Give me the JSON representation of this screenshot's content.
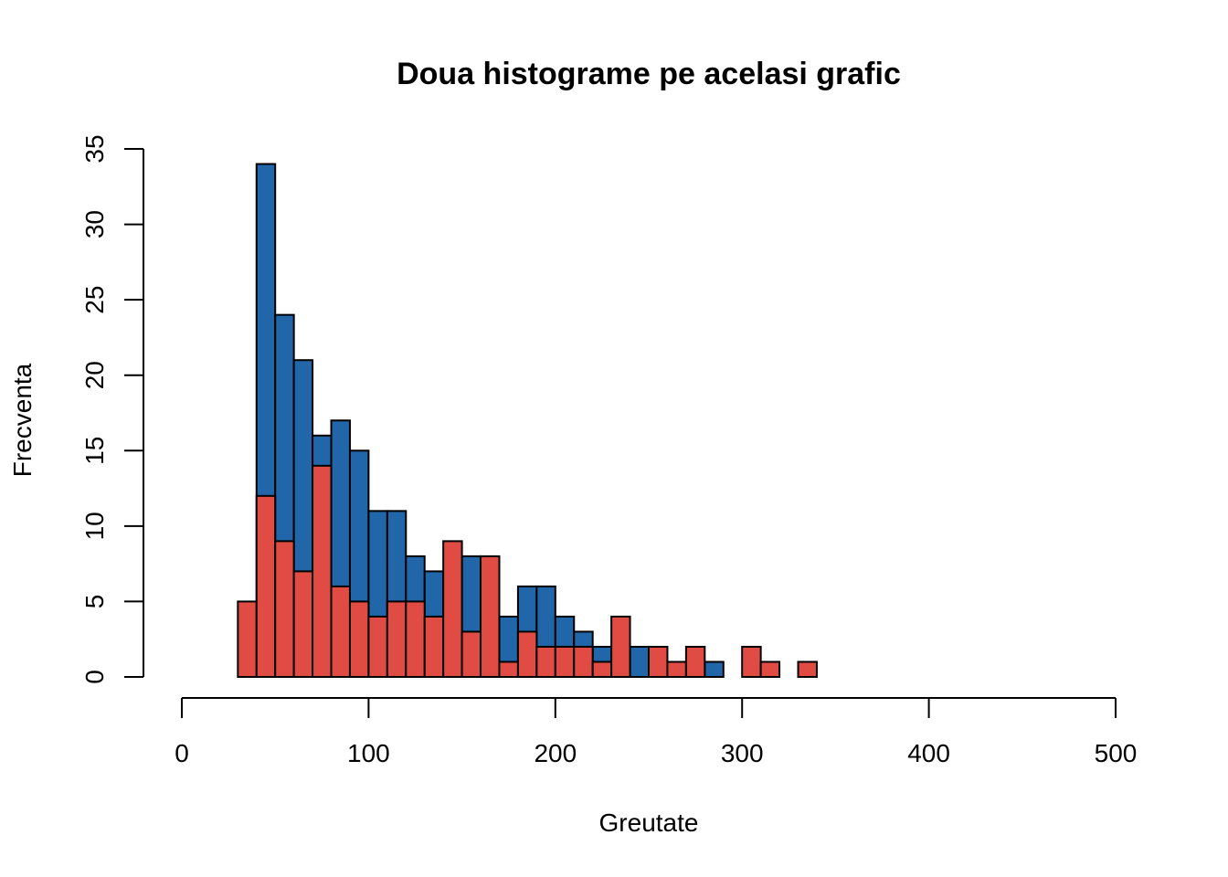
{
  "chart_data": {
    "type": "bar",
    "title": "Doua histograme pe acelasi grafic",
    "xlabel": "Greutate",
    "ylabel": "Frecventa",
    "xlim": [
      0,
      500
    ],
    "ylim": [
      0,
      35
    ],
    "x_ticks": [
      0,
      100,
      200,
      300,
      400,
      500
    ],
    "y_ticks": [
      0,
      5,
      10,
      15,
      20,
      25,
      30,
      35
    ],
    "bin_width": 10,
    "bin_starts": [
      30,
      40,
      50,
      60,
      70,
      80,
      90,
      100,
      110,
      120,
      130,
      140,
      150,
      160,
      170,
      180,
      190,
      200,
      210,
      220,
      230,
      240,
      250,
      260,
      270,
      280,
      290,
      300,
      310,
      320,
      330
    ],
    "series": [
      {
        "color": "#2166a8",
        "values": [
          0,
          34,
          24,
          21,
          16,
          17,
          15,
          11,
          11,
          8,
          7,
          0,
          8,
          0,
          4,
          6,
          6,
          4,
          3,
          2,
          0,
          2,
          0,
          0,
          0,
          1,
          0,
          0,
          0,
          0,
          0
        ]
      },
      {
        "color": "#e04c44",
        "values": [
          5,
          12,
          9,
          7,
          14,
          6,
          5,
          4,
          5,
          5,
          4,
          9,
          3,
          8,
          1,
          3,
          2,
          2,
          2,
          1,
          4,
          0,
          2,
          1,
          2,
          0,
          0,
          2,
          1,
          0,
          1
        ]
      }
    ],
    "grid": false,
    "legend": "none"
  }
}
